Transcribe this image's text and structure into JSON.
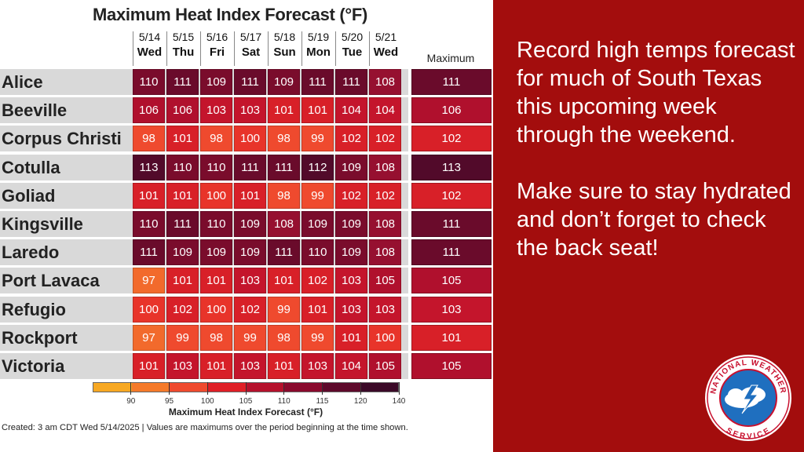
{
  "title": "Maximum Heat Index Forecast (°F)",
  "days": [
    {
      "date": "5/14",
      "dow": "Wed"
    },
    {
      "date": "5/15",
      "dow": "Thu"
    },
    {
      "date": "5/16",
      "dow": "Fri"
    },
    {
      "date": "5/17",
      "dow": "Sat"
    },
    {
      "date": "5/18",
      "dow": "Sun"
    },
    {
      "date": "5/19",
      "dow": "Mon"
    },
    {
      "date": "5/20",
      "dow": "Tue"
    },
    {
      "date": "5/21",
      "dow": "Wed"
    }
  ],
  "max_header": "Maximum",
  "rows": [
    {
      "city": "Alice",
      "values": [
        110,
        111,
        109,
        111,
        109,
        111,
        111,
        108
      ],
      "max": 111
    },
    {
      "city": "Beeville",
      "values": [
        106,
        106,
        103,
        103,
        101,
        101,
        104,
        104
      ],
      "max": 106
    },
    {
      "city": "Corpus Christi",
      "values": [
        98,
        101,
        98,
        100,
        98,
        99,
        102,
        102
      ],
      "max": 102
    },
    {
      "city": "Cotulla",
      "values": [
        113,
        110,
        110,
        111,
        111,
        112,
        109,
        108
      ],
      "max": 113
    },
    {
      "city": "Goliad",
      "values": [
        101,
        101,
        100,
        101,
        98,
        99,
        102,
        102
      ],
      "max": 102
    },
    {
      "city": "Kingsville",
      "values": [
        110,
        111,
        110,
        109,
        108,
        109,
        109,
        108
      ],
      "max": 111
    },
    {
      "city": "Laredo",
      "values": [
        111,
        109,
        109,
        109,
        111,
        110,
        109,
        108
      ],
      "max": 111
    },
    {
      "city": "Port Lavaca",
      "values": [
        97,
        101,
        101,
        103,
        101,
        102,
        103,
        105
      ],
      "max": 105
    },
    {
      "city": "Refugio",
      "values": [
        100,
        102,
        100,
        102,
        99,
        101,
        103,
        103
      ],
      "max": 103
    },
    {
      "city": "Rockport",
      "values": [
        97,
        99,
        98,
        99,
        98,
        99,
        101,
        100
      ],
      "max": 101
    },
    {
      "city": "Victoria",
      "values": [
        101,
        103,
        101,
        103,
        101,
        103,
        104,
        105
      ],
      "max": 105
    }
  ],
  "colorbar": {
    "ticks": [
      "90",
      "95",
      "100",
      "105",
      "110",
      "115",
      "120",
      "140"
    ],
    "title": "Maximum Heat Index Forecast (°F)",
    "colors": [
      "#f7a823",
      "#f57a2a",
      "#ef4a2e",
      "#e01f26",
      "#b5112c",
      "#8a0a2d",
      "#5e0a2b",
      "#3b0a28"
    ]
  },
  "footer": "Created: 3 am CDT Wed 5/14/2025  |  Values are maximums over the period beginning at the time shown.",
  "message": {
    "para1": "Record high temps forecast for much of South Texas this upcoming week through the weekend.",
    "para2": "Make sure to stay hydrated and don’t forget to check the back seat!"
  },
  "logo_text": "NATIONAL WEATHER SERVICE",
  "colors": {
    "panel": "#a30d0d",
    "row_band": "#d9d9d9"
  }
}
